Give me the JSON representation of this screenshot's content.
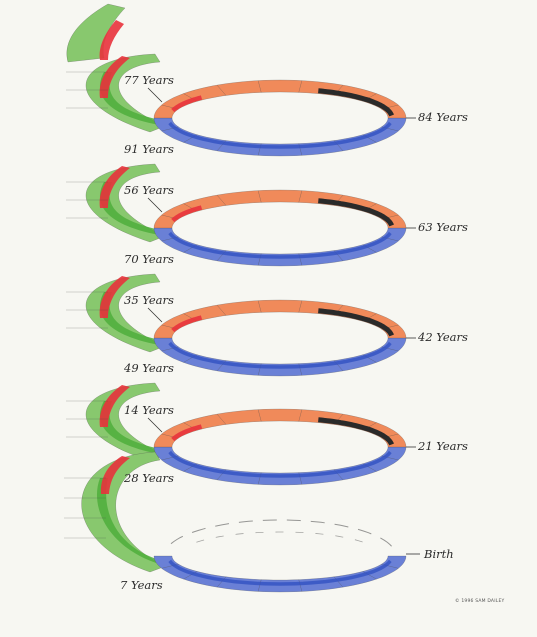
{
  "diagram": {
    "colors": {
      "orange": "#f08a5a",
      "blue": "#6a80d6",
      "green": "#88c86e",
      "red": "#e8323c",
      "dark": "#2a2a2a",
      "outline": "#4a4a4a"
    },
    "right_labels": [
      "84 Years",
      "63 Years",
      "42 Years",
      "21 Years",
      "Birth"
    ],
    "left_upper_labels": [
      "77 Years",
      "56 Years",
      "35 Years",
      "14 Years"
    ],
    "left_lower_labels": [
      "91 Years",
      "70 Years",
      "49 Years",
      "28 Years",
      "7 Years"
    ],
    "credit": "© 1996 SAM DAILEY"
  }
}
